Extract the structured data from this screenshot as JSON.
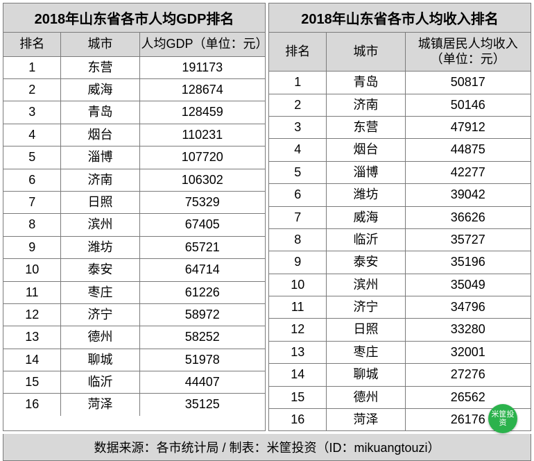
{
  "left": {
    "title": "2018年山东省各市人均GDP排名",
    "columns": [
      "排名",
      "城市",
      "人均GDP（单位：元）"
    ],
    "rows": [
      [
        "1",
        "东营",
        "191173"
      ],
      [
        "2",
        "威海",
        "128674"
      ],
      [
        "3",
        "青岛",
        "128459"
      ],
      [
        "4",
        "烟台",
        "110231"
      ],
      [
        "5",
        "淄博",
        "107720"
      ],
      [
        "6",
        "济南",
        "106302"
      ],
      [
        "7",
        "日照",
        "75329"
      ],
      [
        "8",
        "滨州",
        "67405"
      ],
      [
        "9",
        "潍坊",
        "65721"
      ],
      [
        "10",
        "泰安",
        "64714"
      ],
      [
        "11",
        "枣庄",
        "61226"
      ],
      [
        "12",
        "济宁",
        "58972"
      ],
      [
        "13",
        "德州",
        "58252"
      ],
      [
        "14",
        "聊城",
        "51978"
      ],
      [
        "15",
        "临沂",
        "44407"
      ],
      [
        "16",
        "菏泽",
        "35125"
      ]
    ]
  },
  "right": {
    "title": "2018年山东省各市人均收入排名",
    "columns": [
      "排名",
      "城市",
      "城镇居民人均收入（单位：元）"
    ],
    "rows": [
      [
        "1",
        "青岛",
        "50817"
      ],
      [
        "2",
        "济南",
        "50146"
      ],
      [
        "3",
        "东营",
        "47912"
      ],
      [
        "4",
        "烟台",
        "44875"
      ],
      [
        "5",
        "淄博",
        "42277"
      ],
      [
        "6",
        "潍坊",
        "39042"
      ],
      [
        "7",
        "威海",
        "36626"
      ],
      [
        "8",
        "临沂",
        "35727"
      ],
      [
        "9",
        "泰安",
        "35196"
      ],
      [
        "10",
        "滨州",
        "35049"
      ],
      [
        "11",
        "济宁",
        "34796"
      ],
      [
        "12",
        "日照",
        "33280"
      ],
      [
        "13",
        "枣庄",
        "32001"
      ],
      [
        "14",
        "聊城",
        "27276"
      ],
      [
        "15",
        "德州",
        "26562"
      ],
      [
        "16",
        "菏泽",
        "26176"
      ]
    ]
  },
  "footer": "数据来源：各市统计局 / 制表：米筐投资（ID：mikuangtouzi）",
  "watermark": "米筐投资",
  "style": {
    "header_bg": "#d8d8d8",
    "cell_bg": "#ffffff",
    "border_color": "#7a7a7a",
    "title_fontsize": 20,
    "header_fontsize": 18,
    "cell_fontsize": 18,
    "col_widths_pct": [
      22,
      30,
      48
    ]
  }
}
